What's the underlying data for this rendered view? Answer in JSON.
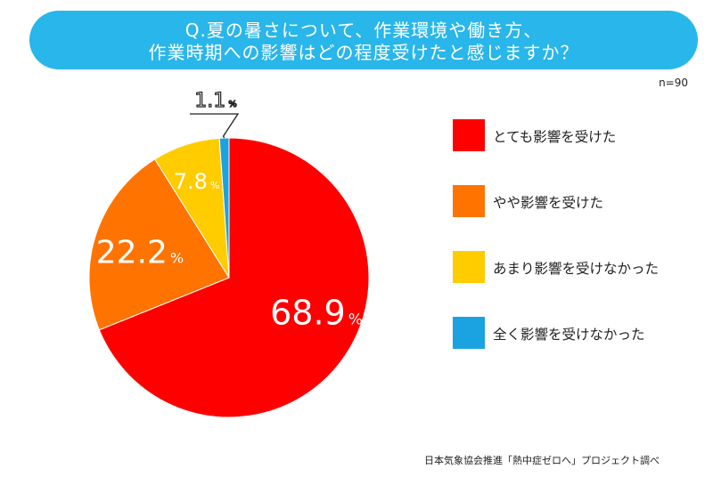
{
  "title": {
    "line1": "Q.夏の暑さについて、作業環境や働き方、",
    "line2": "作業時期への影響はどの程度受けたと感じますか？"
  },
  "sample_size": "n=90",
  "source": "日本気象協会推進「熱中症ゼロへ」プロジェクト調べ",
  "colors": {
    "title_bg": "#29b6ea",
    "red": "#ff0000",
    "orange": "#ff7300",
    "yellow": "#ffcc00",
    "blue": "#1aa3e0"
  },
  "chart_data": {
    "type": "pie",
    "unit": "%",
    "categories": [
      "とても影響を受けた",
      "やや影響を受けた",
      "あまり影響を受けなかった",
      "全く影響を受けなかった"
    ],
    "values": [
      68.9,
      22.2,
      7.8,
      1.1
    ],
    "colors": [
      "#ff0000",
      "#ff7300",
      "#ffcc00",
      "#1aa3e0"
    ],
    "labels": [
      "68.9",
      "22.2",
      "7.8",
      "1.1"
    ],
    "start": "12 o'clock",
    "direction": "clockwise",
    "legend_position": "right"
  }
}
